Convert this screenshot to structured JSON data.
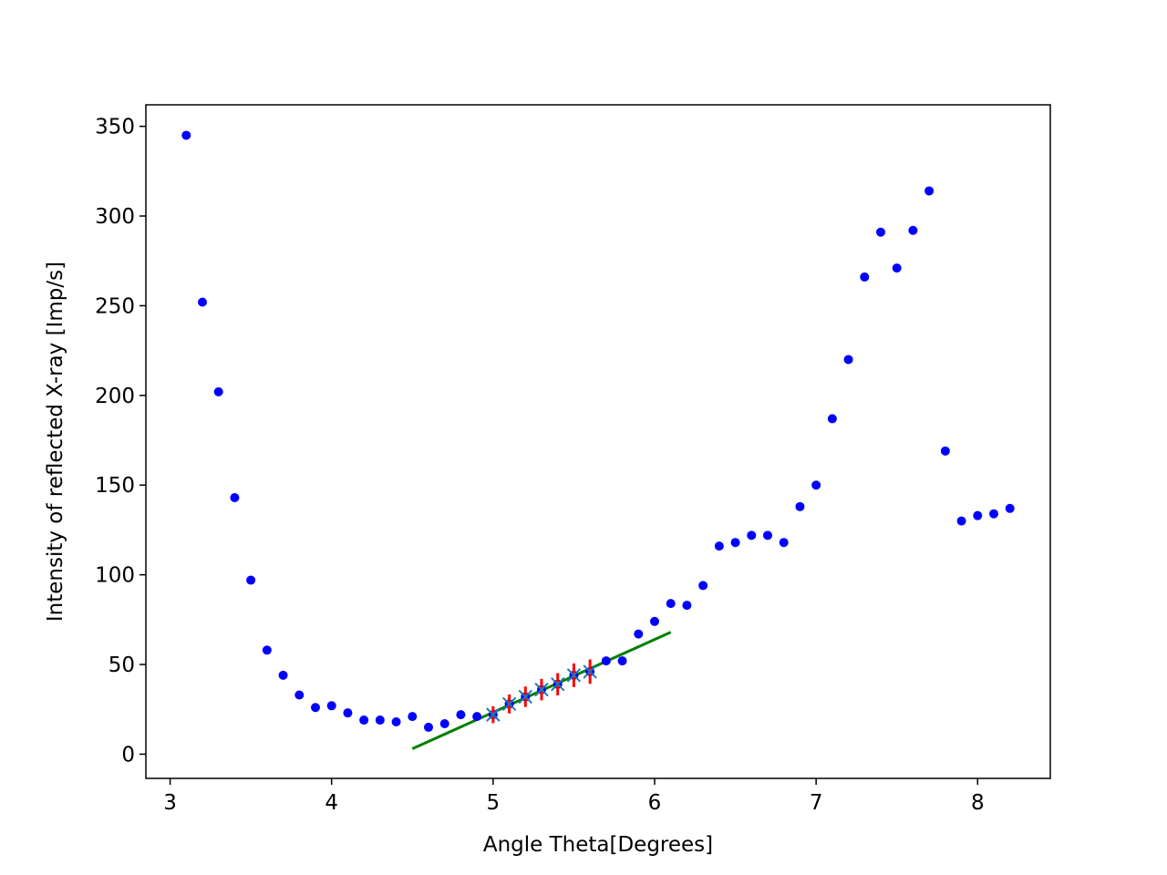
{
  "chart_data": {
    "type": "scatter",
    "title": "",
    "xlabel": "Angle Theta[Degrees]",
    "ylabel": "Intensity of reflected X-ray [Imp/s]",
    "xlim": [
      2.85,
      8.45
    ],
    "ylim": [
      -13.5,
      362
    ],
    "x_ticks": [
      3,
      4,
      5,
      6,
      7,
      8
    ],
    "y_ticks": [
      0,
      50,
      100,
      150,
      200,
      250,
      300,
      350
    ],
    "grid": false,
    "legend": "none",
    "series": [
      {
        "kind": "points",
        "color": "#0000ff",
        "marker": "circle",
        "x": [
          3.1,
          3.2,
          3.3,
          3.4,
          3.5,
          3.6,
          3.7,
          3.8,
          3.9,
          4.0,
          4.1,
          4.2,
          4.3,
          4.4,
          4.5,
          4.6,
          4.7,
          4.8,
          4.9,
          5.0,
          5.1,
          5.2,
          5.3,
          5.4,
          5.5,
          5.6,
          5.7,
          5.8,
          5.9,
          6.0,
          6.1,
          6.2,
          6.3,
          6.4,
          6.5,
          6.6,
          6.7,
          6.8,
          6.9,
          7.0,
          7.1,
          7.2,
          7.3,
          7.4,
          7.5,
          7.6,
          7.7,
          7.8,
          7.9,
          8.0,
          8.1,
          8.2
        ],
        "y": [
          345,
          252,
          202,
          143,
          97,
          58,
          44,
          33,
          26,
          27,
          23,
          19,
          19,
          18,
          21,
          15,
          17,
          22,
          21,
          22,
          28,
          32,
          36,
          39,
          44,
          46,
          52,
          52,
          67,
          74,
          84,
          83,
          94,
          116,
          118,
          122,
          122,
          118,
          138,
          150,
          187,
          220,
          266,
          291,
          271,
          292,
          314,
          169,
          130,
          133,
          134,
          137
        ]
      },
      {
        "kind": "errorbar",
        "color": "#ff0000",
        "marker_color": "#1f77b4",
        "marker": "x",
        "x": [
          5.0,
          5.1,
          5.2,
          5.3,
          5.4,
          5.5,
          5.6
        ],
        "y": [
          22,
          28,
          32,
          36,
          39,
          44,
          46
        ],
        "yerr": [
          4.7,
          5.3,
          5.7,
          6.0,
          6.2,
          6.6,
          6.8
        ]
      },
      {
        "kind": "line",
        "color": "#008000",
        "x": [
          4.5,
          6.1
        ],
        "y": [
          3,
          68
        ]
      }
    ]
  }
}
